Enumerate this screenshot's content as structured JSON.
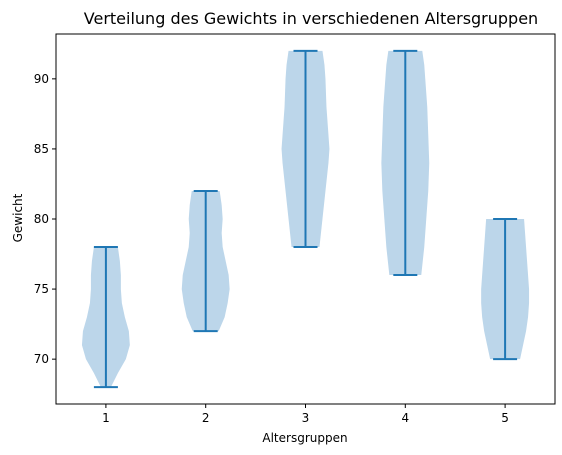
{
  "chart_data": {
    "type": "violin",
    "title": "Verteilung des Gewichts in verschiedenen Altersgruppen",
    "xlabel": "Altersgruppen",
    "ylabel": "Gewicht",
    "categories": [
      "1",
      "2",
      "3",
      "4",
      "5"
    ],
    "xlim": [
      0.5,
      5.5
    ],
    "ylim": [
      66.8,
      93.2
    ],
    "yticks": [
      70,
      75,
      80,
      85,
      90
    ],
    "grid": false,
    "colors": {
      "body": "#bcd6ea",
      "line": "#1f77b4"
    },
    "violins": [
      {
        "x": 1,
        "min": 68,
        "max": 78,
        "density": [
          [
            68,
            0.05
          ],
          [
            69,
            0.12
          ],
          [
            70,
            0.2
          ],
          [
            71,
            0.24
          ],
          [
            72,
            0.23
          ],
          [
            73,
            0.19
          ],
          [
            74,
            0.16
          ],
          [
            75,
            0.15
          ],
          [
            76,
            0.15
          ],
          [
            77,
            0.14
          ],
          [
            78,
            0.12
          ]
        ]
      },
      {
        "x": 2,
        "min": 72,
        "max": 82,
        "density": [
          [
            72,
            0.13
          ],
          [
            73,
            0.19
          ],
          [
            74,
            0.22
          ],
          [
            75,
            0.24
          ],
          [
            76,
            0.23
          ],
          [
            77,
            0.2
          ],
          [
            78,
            0.17
          ],
          [
            79,
            0.16
          ],
          [
            80,
            0.17
          ],
          [
            81,
            0.16
          ],
          [
            82,
            0.14
          ]
        ]
      },
      {
        "x": 3,
        "min": 78,
        "max": 92,
        "density": [
          [
            78,
            0.14
          ],
          [
            80,
            0.17
          ],
          [
            82,
            0.2
          ],
          [
            84,
            0.23
          ],
          [
            85,
            0.24
          ],
          [
            86,
            0.23
          ],
          [
            88,
            0.21
          ],
          [
            90,
            0.2
          ],
          [
            91,
            0.19
          ],
          [
            92,
            0.17
          ]
        ]
      },
      {
        "x": 4,
        "min": 76,
        "max": 92,
        "density": [
          [
            76,
            0.16
          ],
          [
            78,
            0.19
          ],
          [
            80,
            0.21
          ],
          [
            82,
            0.23
          ],
          [
            84,
            0.24
          ],
          [
            86,
            0.23
          ],
          [
            88,
            0.22
          ],
          [
            90,
            0.2
          ],
          [
            91,
            0.19
          ],
          [
            92,
            0.17
          ]
        ]
      },
      {
        "x": 5,
        "min": 70,
        "max": 80,
        "density": [
          [
            70,
            0.15
          ],
          [
            71,
            0.18
          ],
          [
            72,
            0.21
          ],
          [
            73,
            0.23
          ],
          [
            74,
            0.24
          ],
          [
            75,
            0.24
          ],
          [
            76,
            0.23
          ],
          [
            77,
            0.22
          ],
          [
            78,
            0.21
          ],
          [
            79,
            0.2
          ],
          [
            80,
            0.19
          ]
        ]
      }
    ]
  }
}
